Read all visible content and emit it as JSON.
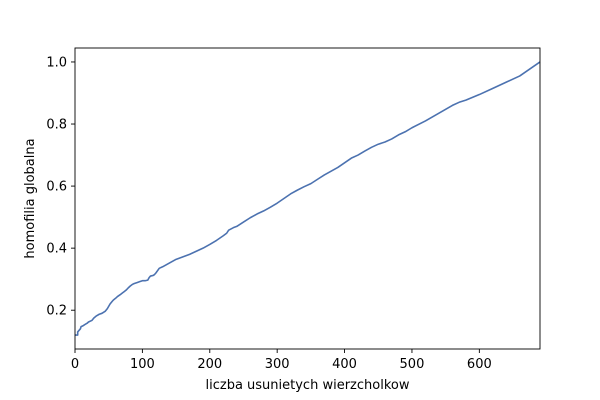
{
  "chart_data": {
    "type": "line",
    "title": "",
    "xlabel": "liczba usunietych wierzcholkow",
    "ylabel": "homofilia globalna",
    "xlim": [
      0,
      690
    ],
    "ylim": [
      0.075,
      1.045
    ],
    "xticks": [
      0,
      100,
      200,
      300,
      400,
      500,
      600
    ],
    "yticks": [
      0.2,
      0.4,
      0.6,
      0.8,
      1.0
    ],
    "xtick_labels": [
      "0",
      "100",
      "200",
      "300",
      "400",
      "500",
      "600"
    ],
    "ytick_labels": [
      "0.2",
      "0.4",
      "0.6",
      "0.8",
      "1.0"
    ],
    "grid": false,
    "line_color": "#4c72b0",
    "series": [
      {
        "x": [
          0,
          4,
          4,
          8,
          9,
          12,
          14,
          18,
          20,
          25,
          28,
          32,
          36,
          40,
          45,
          48,
          52,
          55,
          57,
          60,
          63,
          67,
          70,
          73,
          76,
          79,
          82,
          85,
          88,
          92,
          96,
          100,
          104,
          108,
          110,
          112,
          116,
          118,
          120,
          125,
          130,
          135,
          140,
          145,
          150,
          160,
          170,
          180,
          190,
          200,
          210,
          220,
          225,
          228,
          235,
          240,
          250,
          260,
          270,
          280,
          290,
          300,
          310,
          320,
          330,
          340,
          350,
          360,
          370,
          380,
          390,
          400,
          410,
          420,
          430,
          440,
          450,
          460,
          470,
          480,
          490,
          500,
          520,
          540,
          560,
          570,
          580,
          600,
          620,
          640,
          660,
          690
        ],
        "y": [
          0.12,
          0.12,
          0.13,
          0.14,
          0.147,
          0.15,
          0.153,
          0.158,
          0.162,
          0.167,
          0.175,
          0.182,
          0.187,
          0.19,
          0.197,
          0.205,
          0.22,
          0.228,
          0.233,
          0.238,
          0.244,
          0.25,
          0.255,
          0.26,
          0.265,
          0.272,
          0.278,
          0.283,
          0.286,
          0.289,
          0.292,
          0.295,
          0.295,
          0.297,
          0.305,
          0.31,
          0.312,
          0.315,
          0.32,
          0.335,
          0.34,
          0.346,
          0.352,
          0.358,
          0.364,
          0.372,
          0.38,
          0.39,
          0.4,
          0.412,
          0.425,
          0.44,
          0.448,
          0.458,
          0.466,
          0.47,
          0.484,
          0.498,
          0.51,
          0.52,
          0.532,
          0.545,
          0.56,
          0.575,
          0.587,
          0.598,
          0.608,
          0.622,
          0.636,
          0.648,
          0.66,
          0.675,
          0.69,
          0.7,
          0.713,
          0.725,
          0.735,
          0.742,
          0.752,
          0.765,
          0.775,
          0.788,
          0.81,
          0.835,
          0.86,
          0.87,
          0.877,
          0.895,
          0.915,
          0.935,
          0.955,
          1.0
        ]
      }
    ]
  }
}
